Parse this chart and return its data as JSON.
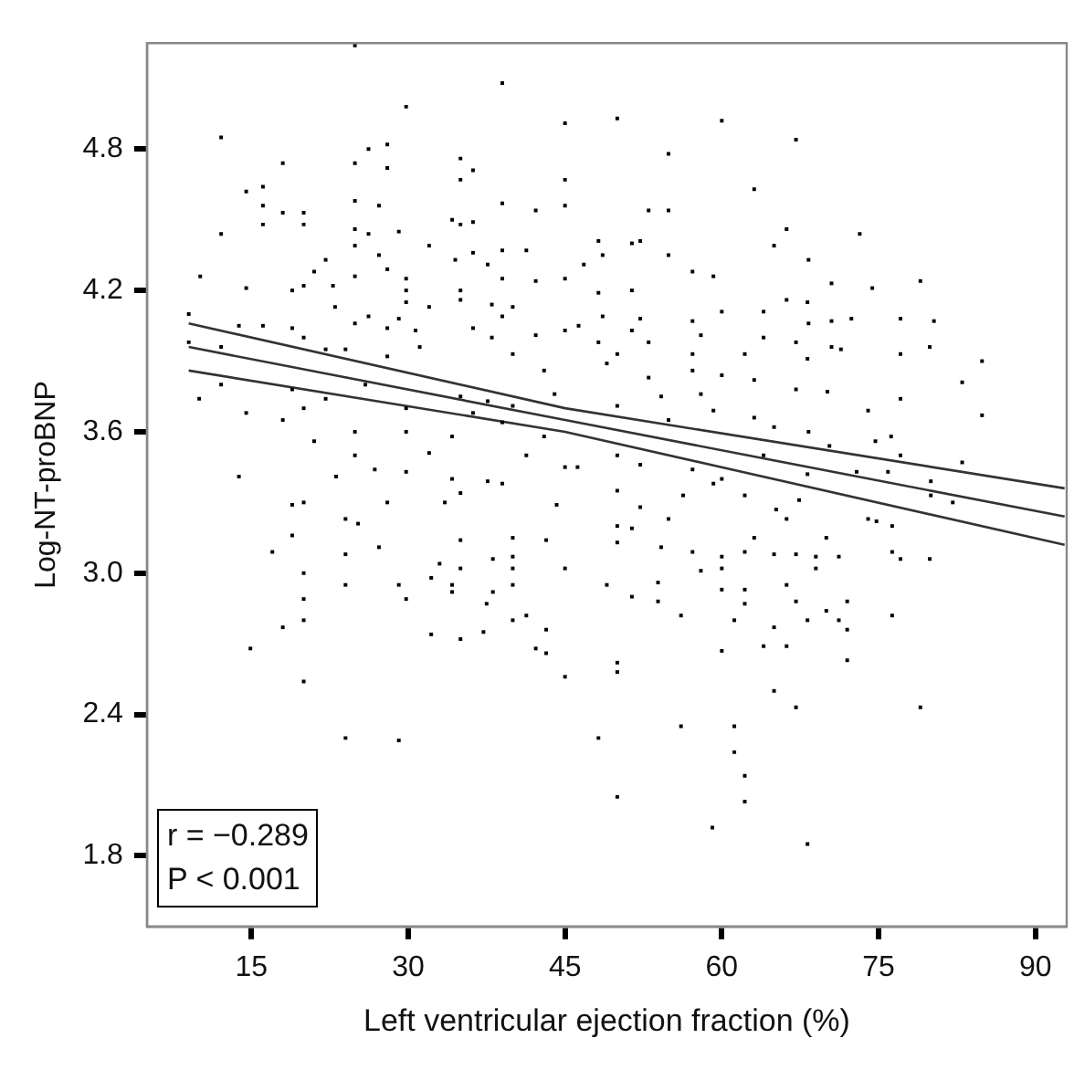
{
  "chart_data": {
    "type": "scatter",
    "xlabel": "Left ventricular ejection fraction (%)",
    "ylabel": "Log-NT-proBNP",
    "xlim": [
      5,
      93
    ],
    "xticks": [
      15,
      30,
      45,
      60,
      75,
      90
    ],
    "ylim": [
      1.5,
      5.25
    ],
    "yticks": [
      1.8,
      2.4,
      {
        "value": 3,
        "label": "3.0"
      },
      3.6,
      4.2,
      4.8
    ],
    "grid": false,
    "legend": false,
    "annotations": [
      "r = −0.289",
      "P < 0.001"
    ],
    "series": [
      {
        "marker": "square",
        "color": "#000000",
        "x": [
          24.9,
          39,
          29.8,
          12.1,
          45,
          26.2,
          28,
          18,
          24.9,
          28,
          35,
          36.2,
          35,
          45,
          16.1,
          14.5,
          16.1,
          18,
          20,
          24.9,
          27.2,
          39,
          42.2,
          45,
          12.1,
          16.1,
          20,
          24.9,
          26.2,
          29.1,
          34.2,
          35,
          36.2,
          24.9,
          27.2,
          32,
          36.2,
          39,
          41.3,
          22.1,
          28,
          34.5,
          37.6,
          21,
          24.9,
          29.8,
          42.2,
          10.1,
          14.5,
          18.9,
          20,
          22.8,
          29.8,
          35,
          39,
          45,
          23,
          26.2,
          29.8,
          32,
          35,
          38,
          39,
          40,
          9,
          13.8,
          16.1,
          18.9,
          20,
          24.9,
          28,
          29.1,
          30.7,
          36.2,
          42.2,
          45,
          9,
          12.1,
          22.1,
          24,
          28,
          31.1,
          38,
          40,
          43,
          10,
          12.1,
          18.9,
          20,
          22.1,
          25.9,
          29.8,
          35,
          37.6,
          40,
          44,
          14.5,
          18,
          21,
          24.9,
          29.8,
          34.2,
          36.2,
          39,
          43,
          13.8,
          18.9,
          20,
          23.1,
          24.9,
          26.8,
          29.8,
          32,
          34.2,
          35,
          37.6,
          39,
          41.3,
          45,
          28,
          33.5,
          44.2,
          50,
          60,
          67.1,
          54.9,
          63.1,
          53,
          54.9,
          66.2,
          73.2,
          65,
          48.2,
          51.4,
          52.2,
          46.8,
          48.6,
          54.9,
          57.2,
          59.2,
          68.3,
          70.5,
          74.4,
          79,
          48.2,
          51.4,
          66.2,
          68.2,
          57.2,
          60,
          64,
          68.3,
          70.5,
          72.4,
          77.1,
          80.3,
          48.6,
          52.2,
          46.3,
          51.4,
          48.2,
          67.1,
          58,
          64,
          53,
          57.2,
          62.2,
          68.2,
          70.5,
          71.4,
          77.1,
          79.9,
          84.9,
          50,
          49,
          53,
          57.2,
          60,
          63.1,
          67.1,
          70.1,
          83,
          54.2,
          58,
          59.2,
          77.1,
          74,
          84.9,
          50,
          63.1,
          54.9,
          65,
          68.3,
          74.7,
          76.2,
          70.3,
          77.1,
          83,
          80,
          46.2,
          50,
          52.2,
          57.2,
          60,
          64,
          68.2,
          72.9,
          75.9,
          50,
          52.2,
          56.3,
          59.2,
          62.2,
          65.2,
          67.4,
          74,
          80,
          82.1,
          24,
          25.2,
          18.9,
          17,
          27.2,
          24,
          35,
          40,
          40,
          43.2,
          20,
          33,
          35,
          38.1,
          40,
          45,
          24,
          29.1,
          32.2,
          34.2,
          34.2,
          38.1,
          40,
          20,
          29.8,
          37.5,
          20,
          18,
          40,
          41.3,
          32.2,
          35,
          37.2,
          43.2,
          14.9,
          42.2,
          43.2,
          20,
          45,
          24,
          29.1,
          50,
          50,
          51.4,
          54.2,
          54.9,
          57.2,
          60,
          60,
          62.2,
          63.1,
          65,
          66.2,
          67.1,
          69,
          69,
          70,
          71.2,
          76.3,
          77.1,
          79.9,
          74.8,
          76.3,
          49,
          51.4,
          53.9,
          53.9,
          56.1,
          58,
          60,
          62.2,
          62.2,
          66.2,
          67.1,
          68.2,
          70,
          71.2,
          72,
          72,
          76.3,
          61.2,
          65,
          60,
          64,
          66.2,
          72,
          50,
          50,
          65,
          67.1,
          79,
          56.1,
          61.2,
          48.2,
          61.2,
          62.2,
          50,
          62.2,
          59.1,
          68.2
        ],
        "values": [
          5.24,
          5.08,
          4.98,
          4.85,
          4.91,
          4.8,
          4.82,
          4.74,
          4.74,
          4.72,
          4.76,
          4.71,
          4.67,
          4.67,
          4.64,
          4.62,
          4.56,
          4.53,
          4.53,
          4.58,
          4.56,
          4.57,
          4.54,
          4.56,
          4.44,
          4.48,
          4.48,
          4.46,
          4.44,
          4.45,
          4.5,
          4.48,
          4.49,
          4.39,
          4.35,
          4.39,
          4.36,
          4.37,
          4.37,
          4.33,
          4.29,
          4.33,
          4.31,
          4.28,
          4.26,
          4.25,
          4.24,
          4.26,
          4.21,
          4.2,
          4.22,
          4.22,
          4.2,
          4.2,
          4.25,
          4.25,
          4.13,
          4.09,
          4.15,
          4.13,
          4.16,
          4.14,
          4.09,
          4.13,
          4.1,
          4.05,
          4.05,
          4.04,
          4.0,
          4.06,
          4.04,
          4.08,
          4.03,
          4.04,
          4.01,
          4.03,
          3.98,
          3.96,
          3.95,
          3.95,
          3.92,
          3.96,
          4.0,
          3.93,
          3.86,
          3.74,
          3.8,
          3.78,
          3.7,
          3.74,
          3.8,
          3.7,
          3.75,
          3.73,
          3.71,
          3.76,
          3.68,
          3.65,
          3.56,
          3.6,
          3.6,
          3.58,
          3.68,
          3.64,
          3.58,
          3.41,
          3.29,
          3.3,
          3.41,
          3.5,
          3.44,
          3.43,
          3.51,
          3.4,
          3.34,
          3.39,
          3.38,
          3.5,
          3.45,
          3.3,
          3.3,
          3.29,
          4.93,
          4.92,
          4.84,
          4.78,
          4.63,
          4.54,
          4.54,
          4.46,
          4.44,
          4.39,
          4.41,
          4.4,
          4.41,
          4.31,
          4.35,
          4.35,
          4.28,
          4.26,
          4.33,
          4.23,
          4.21,
          4.24,
          4.19,
          4.2,
          4.16,
          4.15,
          4.07,
          4.11,
          4.11,
          4.06,
          4.07,
          4.08,
          4.08,
          4.07,
          4.09,
          4.08,
          4.05,
          4.03,
          3.98,
          3.98,
          4.01,
          4.0,
          3.98,
          3.93,
          3.93,
          3.91,
          3.96,
          3.95,
          3.93,
          3.96,
          3.9,
          3.93,
          3.89,
          3.83,
          3.86,
          3.84,
          3.82,
          3.78,
          3.77,
          3.81,
          3.75,
          3.76,
          3.69,
          3.74,
          3.69,
          3.67,
          3.71,
          3.66,
          3.65,
          3.62,
          3.6,
          3.56,
          3.58,
          3.54,
          3.5,
          3.47,
          3.39,
          3.45,
          3.5,
          3.46,
          3.44,
          3.4,
          3.5,
          3.42,
          3.43,
          3.43,
          3.35,
          3.28,
          3.33,
          3.38,
          3.33,
          3.27,
          3.31,
          3.23,
          3.33,
          3.3,
          3.23,
          3.21,
          3.16,
          3.09,
          3.11,
          3.08,
          3.14,
          3.15,
          3.07,
          3.14,
          3.0,
          3.04,
          3.02,
          3.06,
          3.02,
          3.02,
          2.95,
          2.95,
          2.98,
          2.95,
          2.92,
          2.92,
          2.95,
          2.89,
          2.89,
          2.87,
          2.8,
          2.77,
          2.8,
          2.82,
          2.74,
          2.72,
          2.75,
          2.76,
          2.68,
          2.68,
          2.66,
          2.54,
          2.56,
          2.3,
          2.29,
          3.2,
          3.13,
          3.19,
          3.11,
          3.23,
          3.09,
          3.07,
          3.02,
          3.09,
          3.15,
          3.08,
          3.23,
          3.08,
          3.07,
          3.02,
          3.15,
          3.07,
          3.09,
          3.06,
          3.06,
          3.22,
          3.2,
          2.95,
          2.9,
          2.96,
          2.88,
          2.82,
          3.01,
          2.93,
          2.93,
          2.87,
          2.95,
          2.88,
          2.8,
          2.84,
          2.8,
          2.88,
          2.76,
          2.82,
          2.8,
          2.77,
          2.67,
          2.69,
          2.69,
          2.63,
          2.62,
          2.58,
          2.5,
          2.43,
          2.43,
          2.35,
          2.35,
          2.3,
          2.24,
          2.14,
          2.05,
          2.03,
          1.92,
          1.85
        ]
      },
      {
        "type": "line",
        "marker": "none",
        "color": "#333333",
        "x": [
          9,
          45,
          92.8
        ],
        "values": [
          4.06,
          3.7,
          3.36
        ]
      },
      {
        "type": "line",
        "marker": "none",
        "color": "#333333",
        "x": [
          9,
          45,
          92.8
        ],
        "values": [
          3.96,
          3.65,
          3.24
        ]
      },
      {
        "type": "line",
        "marker": "none",
        "color": "#333333",
        "x": [
          9,
          45,
          92.8
        ],
        "values": [
          3.86,
          3.6,
          3.12
        ]
      }
    ]
  }
}
